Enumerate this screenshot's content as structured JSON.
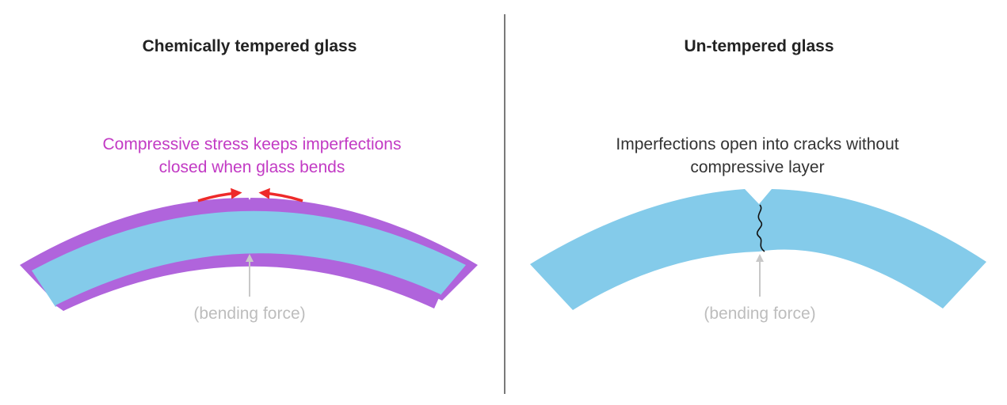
{
  "left_panel": {
    "title": "Chemically tempered glass",
    "annotation_line1": "Compressive stress keeps imperfections",
    "annotation_line2": "closed when glass bends",
    "force_label": "(bending force)"
  },
  "right_panel": {
    "title": "Un-tempered glass",
    "annotation_line1": "Imperfections open into cracks without",
    "annotation_line2": "compressive layer",
    "force_label": "(bending force)"
  },
  "colors": {
    "glass": "#84cbea",
    "compressive_layer": "#b064dc",
    "stress_arrow": "#ee2a2a",
    "annotation_pink": "#c23ac4",
    "force_arrow": "#c8c8c8",
    "divider": "#222222",
    "crack": "#111111"
  }
}
